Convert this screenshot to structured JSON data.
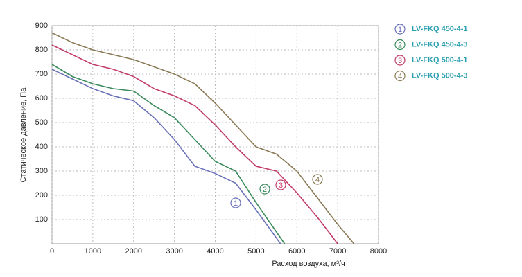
{
  "chart_data": {
    "type": "line",
    "xlabel": "Расход воздуха, м³/ч",
    "ylabel": "Статическое давление, Па",
    "xlim": [
      0,
      8000
    ],
    "xticks": [
      0,
      1000,
      2000,
      3000,
      4000,
      5000,
      6000,
      7000,
      8000
    ],
    "ylim": [
      0,
      900
    ],
    "yticks": [
      100,
      200,
      300,
      400,
      500,
      600,
      700,
      800,
      900
    ],
    "grid": true,
    "legend": "right",
    "series": [
      {
        "name": "LV-FKQ 450-4-1",
        "label": "1",
        "color": "#6a70b8",
        "x": [
          0,
          500,
          1000,
          1500,
          2000,
          2500,
          3000,
          3500,
          4000,
          4500,
          5000,
          5600
        ],
        "values": [
          720,
          680,
          640,
          610,
          590,
          520,
          430,
          320,
          290,
          250,
          140,
          0
        ]
      },
      {
        "name": "LV-FKQ 450-4-3",
        "label": "2",
        "color": "#3a8a5c",
        "x": [
          0,
          500,
          1000,
          1500,
          2000,
          2500,
          3000,
          3500,
          4000,
          4500,
          5000,
          5700
        ],
        "values": [
          740,
          690,
          660,
          640,
          630,
          570,
          520,
          430,
          340,
          300,
          170,
          0
        ]
      },
      {
        "name": "LV-FKQ 500-4-1",
        "label": "3",
        "color": "#c23c68",
        "x": [
          0,
          500,
          1000,
          1500,
          2000,
          2500,
          3000,
          3500,
          4000,
          4500,
          5000,
          5500,
          6000,
          6500,
          7000
        ],
        "values": [
          820,
          780,
          740,
          720,
          690,
          640,
          610,
          570,
          490,
          400,
          320,
          300,
          210,
          110,
          0
        ]
      },
      {
        "name": "LV-FKQ 500-4-3",
        "label": "4",
        "color": "#8a7a55",
        "x": [
          0,
          500,
          1000,
          1500,
          2000,
          2500,
          3000,
          3500,
          4000,
          4500,
          5000,
          5500,
          6000,
          6500,
          7000,
          7400
        ],
        "values": [
          870,
          830,
          800,
          780,
          760,
          730,
          700,
          660,
          580,
          490,
          400,
          370,
          300,
          190,
          80,
          0
        ]
      }
    ]
  }
}
